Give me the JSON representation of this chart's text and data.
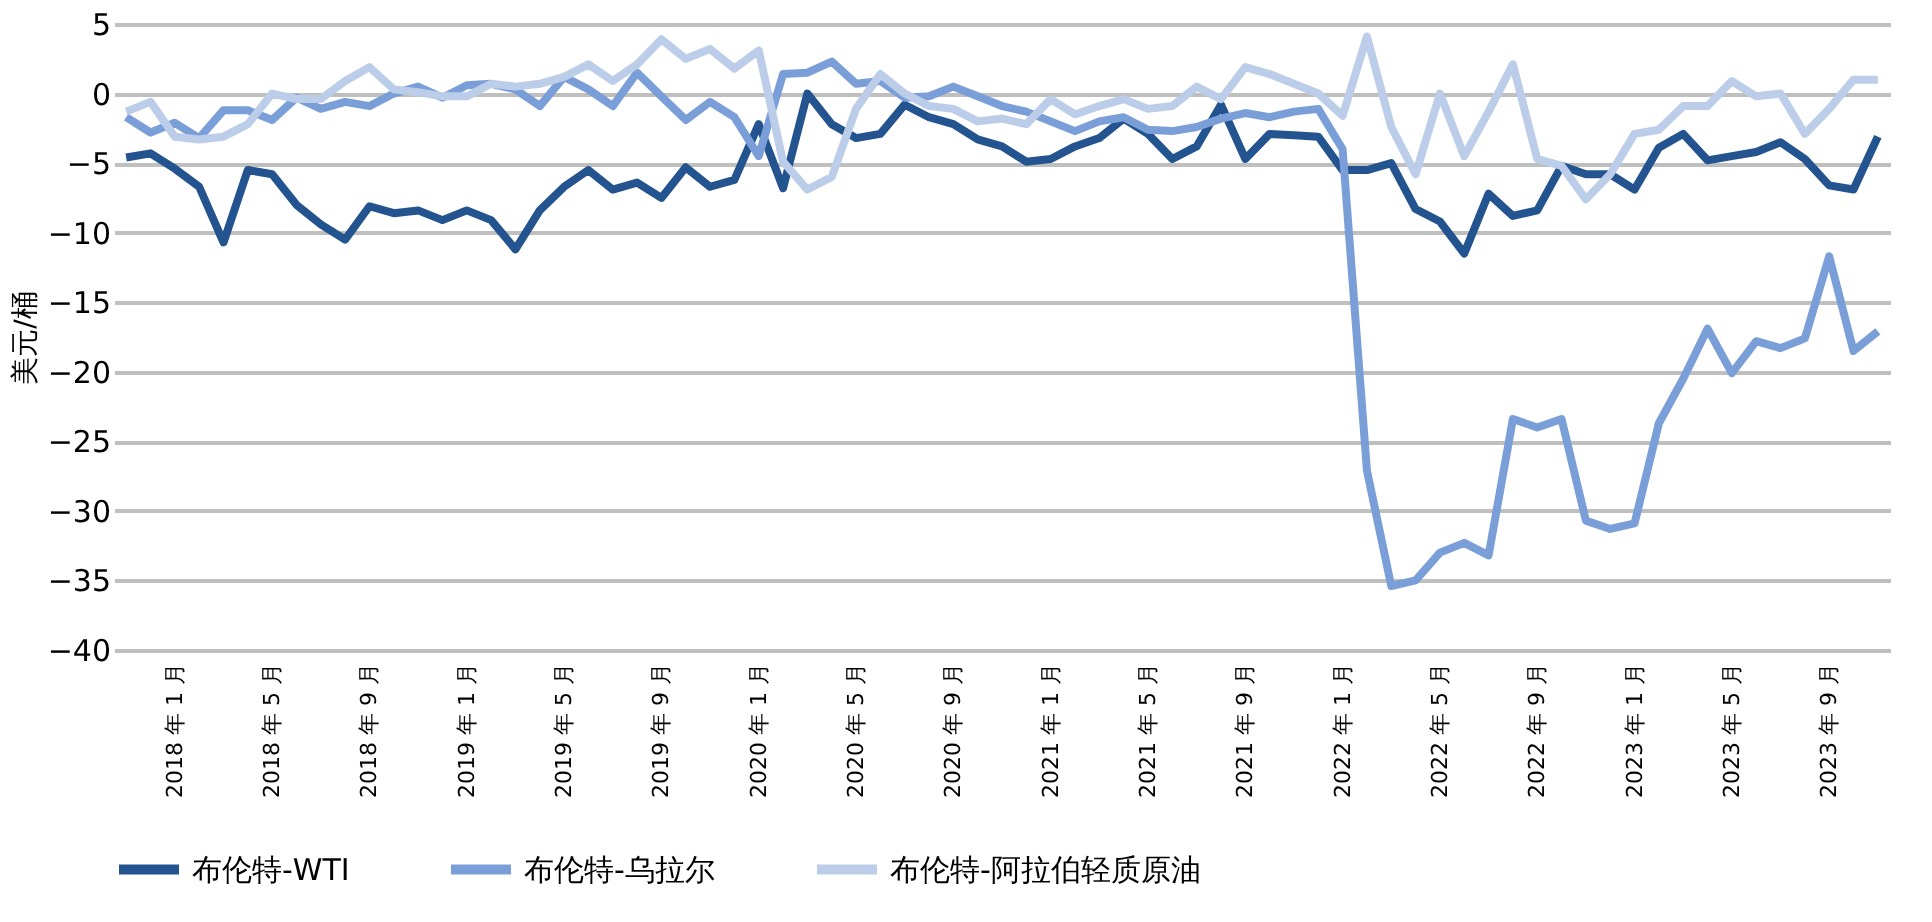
{
  "chart_data": {
    "type": "line",
    "ylabel": "美元/桶",
    "categories": [
      null,
      null,
      "2018 年 1 月",
      null,
      null,
      null,
      "2018 年 5 月",
      null,
      null,
      null,
      "2018 年 9 月",
      null,
      null,
      null,
      "2019 年 1 月",
      null,
      null,
      null,
      "2019 年 5 月",
      null,
      null,
      null,
      "2019 年 9 月",
      null,
      null,
      null,
      "2020 年 1 月",
      null,
      null,
      null,
      "2020 年 5 月",
      null,
      null,
      null,
      "2020 年 9 月",
      null,
      null,
      null,
      "2021 年 1 月",
      null,
      null,
      null,
      "2021 年 5 月",
      null,
      null,
      null,
      "2021 年 9 月",
      null,
      null,
      null,
      "2022 年 1 月",
      null,
      null,
      null,
      "2022 年 5 月",
      null,
      null,
      null,
      "2022 年 9 月",
      null,
      null,
      null,
      "2023 年 1 月",
      null,
      null,
      null,
      "2023 年 5 月",
      null,
      null,
      null,
      "2023 年 9 月",
      null,
      null
    ],
    "series": [
      {
        "name": "布伦特-WTI",
        "color": "#24548f",
        "values": [
          -4.6,
          -4.3,
          -5.4,
          -6.7,
          -10.7,
          -5.5,
          -5.8,
          -8.0,
          -9.4,
          -10.5,
          -8.1,
          -8.6,
          -8.4,
          -9.1,
          -8.4,
          -9.1,
          -11.2,
          -8.4,
          -6.7,
          -5.5,
          -6.9,
          -6.4,
          -7.5,
          -5.3,
          -6.7,
          -6.2,
          -2.2,
          -6.8,
          0.0,
          -2.2,
          -3.2,
          -2.9,
          -0.8,
          -1.7,
          -2.2,
          -3.3,
          -3.8,
          -4.9,
          -4.7,
          -3.8,
          -3.2,
          -1.8,
          -2.9,
          -4.7,
          -3.8,
          -0.8,
          -4.7,
          -2.9,
          -3.0,
          -3.1,
          -5.5,
          -5.5,
          -5.0,
          -8.3,
          -9.2,
          -11.5,
          -7.2,
          -8.8,
          -8.4,
          -5.2,
          -5.8,
          -5.8,
          -6.9,
          -3.9,
          -2.9,
          -4.8,
          -4.5,
          -4.2,
          -3.5,
          -4.7,
          -6.6,
          -6.9,
          -3.1
        ]
      },
      {
        "name": "布伦特-乌拉尔",
        "color": "#7a9fd8",
        "values": [
          -1.7,
          -2.8,
          -2.1,
          -3.2,
          -1.2,
          -1.2,
          -1.9,
          -0.3,
          -1.1,
          -0.6,
          -0.9,
          0.0,
          0.5,
          -0.3,
          0.6,
          0.7,
          0.3,
          -0.9,
          1.2,
          0.3,
          -0.9,
          1.5,
          -0.2,
          -1.9,
          -0.6,
          -1.7,
          -4.5,
          1.4,
          1.5,
          2.3,
          0.7,
          0.9,
          -0.3,
          -0.2,
          0.5,
          -0.2,
          -0.9,
          -1.3,
          -2.0,
          -2.7,
          -2.0,
          -1.7,
          -2.6,
          -2.7,
          -2.4,
          -1.8,
          -1.4,
          -1.7,
          -1.3,
          -1.1,
          -4.0,
          -27.1,
          -35.4,
          -35.0,
          -33.0,
          -32.3,
          -33.2,
          -23.4,
          -24.0,
          -23.4,
          -30.7,
          -31.3,
          -30.9,
          -23.7,
          -20.5,
          -16.9,
          -20.1,
          -17.8,
          -18.3,
          -17.6,
          -11.7,
          -18.5,
          -17.1
        ]
      },
      {
        "name": "布伦特-阿拉伯轻质原油",
        "color": "#bccde9",
        "values": [
          -1.3,
          -0.6,
          -3.1,
          -3.3,
          -3.1,
          -2.2,
          0.0,
          -0.4,
          -0.4,
          0.9,
          1.9,
          0.3,
          0.1,
          -0.2,
          -0.2,
          0.7,
          0.5,
          0.7,
          1.2,
          2.1,
          0.9,
          2.1,
          3.9,
          2.5,
          3.2,
          1.8,
          3.1,
          -4.9,
          -6.9,
          -6.0,
          -1.1,
          1.4,
          0.0,
          -0.9,
          -1.1,
          -2.0,
          -1.8,
          -2.2,
          -0.4,
          -1.5,
          -0.9,
          -0.4,
          -1.1,
          -0.9,
          0.5,
          -0.4,
          1.9,
          1.4,
          0.7,
          0.0,
          -1.6,
          4.1,
          -2.4,
          -5.8,
          0.0,
          -4.5,
          -1.3,
          2.1,
          -4.7,
          -5.2,
          -7.6,
          -5.8,
          -2.9,
          -2.6,
          -0.9,
          -0.9,
          0.9,
          -0.2,
          0.0,
          -2.9,
          -1.1,
          1.0,
          1.0
        ]
      }
    ],
    "ylim": [
      -40,
      5
    ],
    "yticks": [
      -40,
      -35,
      -30,
      -25,
      -20,
      -15,
      -10,
      -5,
      0,
      5
    ],
    "grid": "y",
    "legend": "bottom",
    "line_style": "solid",
    "marker": "none"
  }
}
